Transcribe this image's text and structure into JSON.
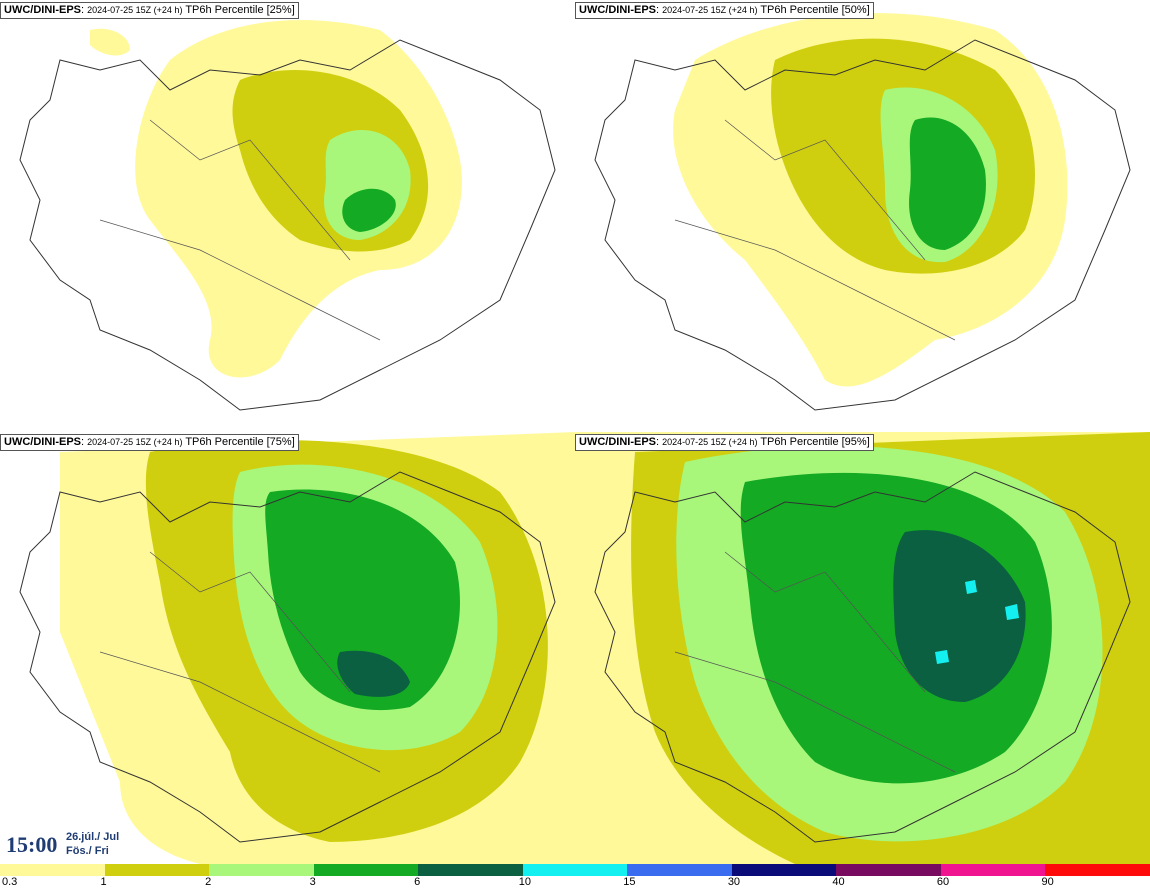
{
  "panels": [
    {
      "model": "UWC/DINI-EPS",
      "meta": "2024-07-25 15Z (+24 h)",
      "label": "TP6h Percentile [25%]"
    },
    {
      "model": "UWC/DINI-EPS",
      "meta": "2024-07-25 15Z (+24 h)",
      "label": "TP6h Percentile [50%]"
    },
    {
      "model": "UWC/DINI-EPS",
      "meta": "2024-07-25 15Z (+24 h)",
      "label": "TP6h Percentile [75%]"
    },
    {
      "model": "UWC/DINI-EPS",
      "meta": "2024-07-25 15Z (+24 h)",
      "label": "TP6h Percentile [95%]"
    }
  ],
  "valid_time": {
    "time": "15:00",
    "date_line1": "26.júl./ Jul",
    "date_line2": "Fös./ Fri"
  },
  "colorbar": {
    "ticks": [
      "0.3",
      "1",
      "2",
      "3",
      "6",
      "10",
      "15",
      "30",
      "40",
      "60",
      "90"
    ],
    "colors": [
      "#fff99a",
      "#cfcf10",
      "#a8f77a",
      "#14aa24",
      "#0a6040",
      "#14f0f0",
      "#3a6cf0",
      "#0a0a78",
      "#780a60",
      "#f01490",
      "#ff0a0a"
    ]
  }
}
